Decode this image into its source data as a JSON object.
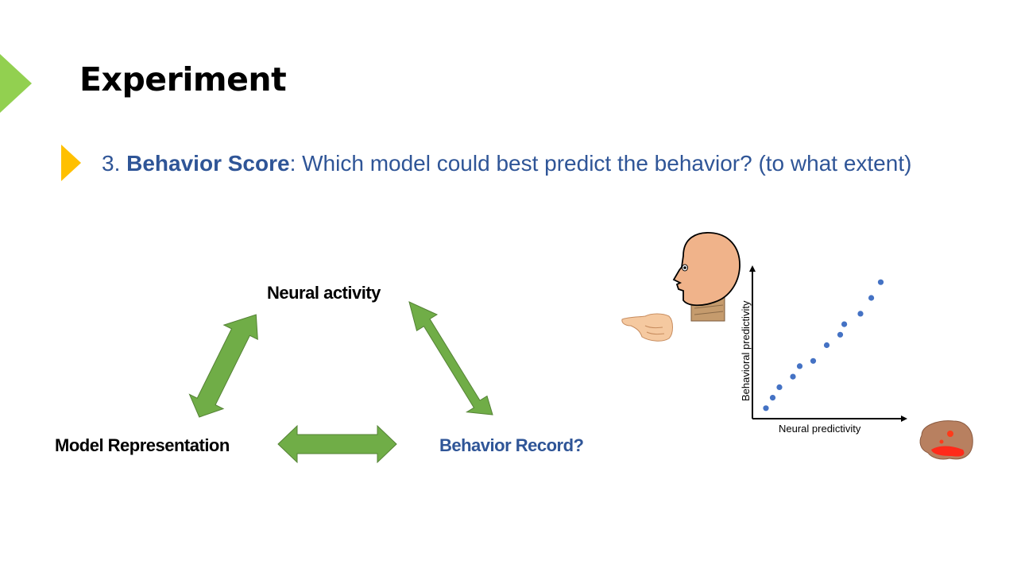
{
  "slide": {
    "title": "Experiment",
    "bullet": {
      "number": "3.",
      "label": "Behavior Score",
      "separator": ":",
      "text": "Which model could best predict the behavior? (to what extent)"
    },
    "colors": {
      "accent_green": "#92d050",
      "bullet_yellow": "#ffc000",
      "text_blue": "#2f5597",
      "arrow_green": "#70ad47",
      "arrow_stroke": "#548235",
      "point_blue": "#4472c4"
    }
  },
  "diagram": {
    "nodes": {
      "neural": "Neural activity",
      "model": "Model Representation",
      "behavior": "Behavior Record?"
    },
    "arrows": [
      "model-neural",
      "neural-behavior",
      "model-behavior"
    ]
  },
  "chart_data": {
    "type": "scatter",
    "xlabel": "Neural predictivity",
    "ylabel": "Behavioral predictivity",
    "points": [
      [
        1.0,
        1.0
      ],
      [
        1.5,
        2.0
      ],
      [
        2.0,
        3.0
      ],
      [
        3.0,
        4.0
      ],
      [
        3.5,
        5.0
      ],
      [
        4.5,
        5.5
      ],
      [
        5.5,
        7.0
      ],
      [
        6.5,
        8.0
      ],
      [
        6.8,
        9.0
      ],
      [
        8.0,
        10.0
      ],
      [
        8.8,
        11.5
      ],
      [
        9.5,
        13.0
      ]
    ],
    "xlim": [
      0,
      11
    ],
    "ylim": [
      0,
      14
    ],
    "grid": false
  },
  "illustrations": [
    "head-icon",
    "pointing-hand-icon",
    "brain-icon"
  ]
}
